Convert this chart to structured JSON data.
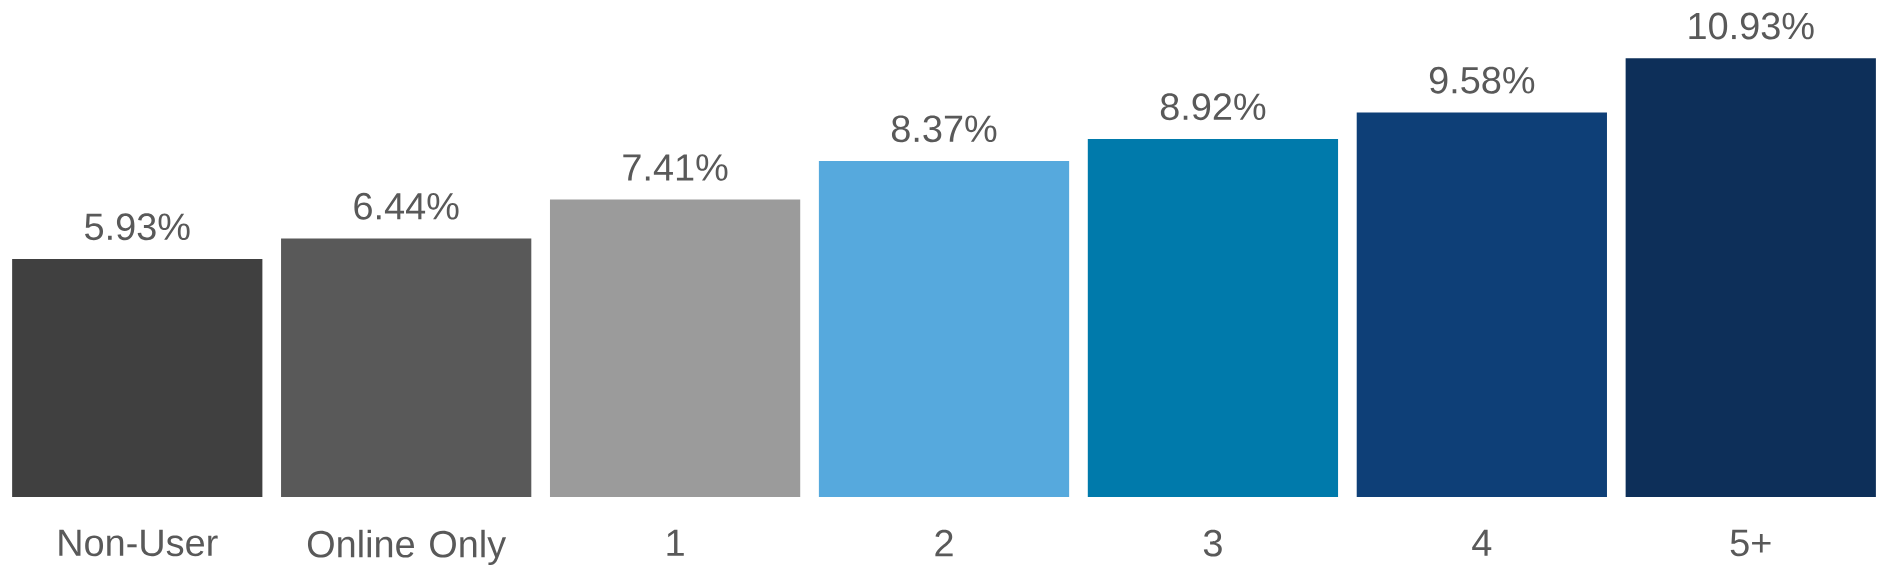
{
  "chart_data": {
    "type": "bar",
    "categories": [
      "Non-User",
      "Online Only",
      "1",
      "2",
      "3",
      "4",
      "5+"
    ],
    "values": [
      5.93,
      6.44,
      7.41,
      8.37,
      8.92,
      9.58,
      10.93
    ],
    "value_labels": [
      "5.93%",
      "6.44%",
      "7.41%",
      "8.37%",
      "8.92%",
      "9.58%",
      "10.93%"
    ],
    "colors": [
      "#404040",
      "#595959",
      "#9b9b9b",
      "#56a9dd",
      "#007aab",
      "#0e3f77",
      "#0d2f59"
    ]
  }
}
